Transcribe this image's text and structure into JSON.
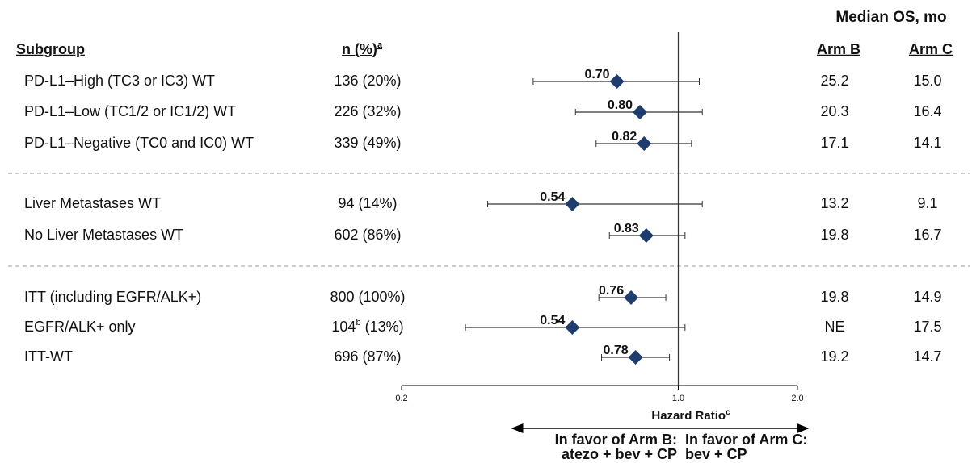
{
  "chart_data": {
    "type": "forest",
    "title": "Median OS, mo",
    "columns": {
      "subgroup": "Subgroup",
      "n": "n (%)",
      "n_note": "a",
      "arm_b": "Arm B",
      "arm_c": "Arm C"
    },
    "categories": [
      "PD-L1–High (TC3 or IC3) WT",
      "PD-L1–Low (TC1/2 or IC1/2) WT",
      "PD-L1–Negative (TC0 and IC0) WT",
      "Liver Metastases WT",
      "No Liver Metastases WT",
      "ITT (including EGFR/ALK+)",
      "EGFR/ALK+ only",
      "ITT-WT"
    ],
    "n_labels": [
      {
        "count": "136",
        "pct": "(20%)"
      },
      {
        "count": "226",
        "pct": "(32%)"
      },
      {
        "count": "339",
        "pct": "(49%)"
      },
      {
        "count": "94",
        "pct": "(14%)"
      },
      {
        "count": "602",
        "pct": "(86%)"
      },
      {
        "count": "800",
        "pct": "(100%)"
      },
      {
        "count": "104",
        "note": "b",
        "pct": "(13%)"
      },
      {
        "count": "696",
        "pct": "(87%)"
      }
    ],
    "values": [
      0.7,
      0.8,
      0.82,
      0.54,
      0.83,
      0.76,
      0.54,
      0.78
    ],
    "value_labels": [
      "0.70",
      "0.80",
      "0.82",
      "0.54",
      "0.83",
      "0.76",
      "0.54",
      "0.78"
    ],
    "ci_low": [
      0.43,
      0.55,
      0.62,
      0.33,
      0.67,
      0.63,
      0.29,
      0.64
    ],
    "ci_high": [
      1.13,
      1.15,
      1.08,
      1.15,
      1.04,
      0.93,
      1.04,
      0.95
    ],
    "arm_b": [
      "25.2",
      "20.3",
      "17.1",
      "13.2",
      "19.8",
      "19.8",
      "NE",
      "19.2"
    ],
    "arm_c": [
      "15.0",
      "16.4",
      "14.1",
      "9.1",
      "16.7",
      "14.9",
      "17.5",
      "14.7"
    ],
    "color": "#1f3c6e",
    "arm_b_color": "#3a5bb0",
    "arm_c_color": "#e03030",
    "log_scale": true,
    "xlim": [
      0.2,
      2.0
    ],
    "xticks": [
      0.2,
      {
        "value": 1.0,
        "label": "1.0"
      },
      {
        "value": 2.0,
        "label": "2.0"
      }
    ],
    "x_label": "Hazard Ratio",
    "x_label_note": "c",
    "favor_left": [
      "In favor of Arm B:",
      "atezo + bev + CP"
    ],
    "favor_right": [
      "In favor of Arm C:",
      "bev + CP"
    ]
  }
}
